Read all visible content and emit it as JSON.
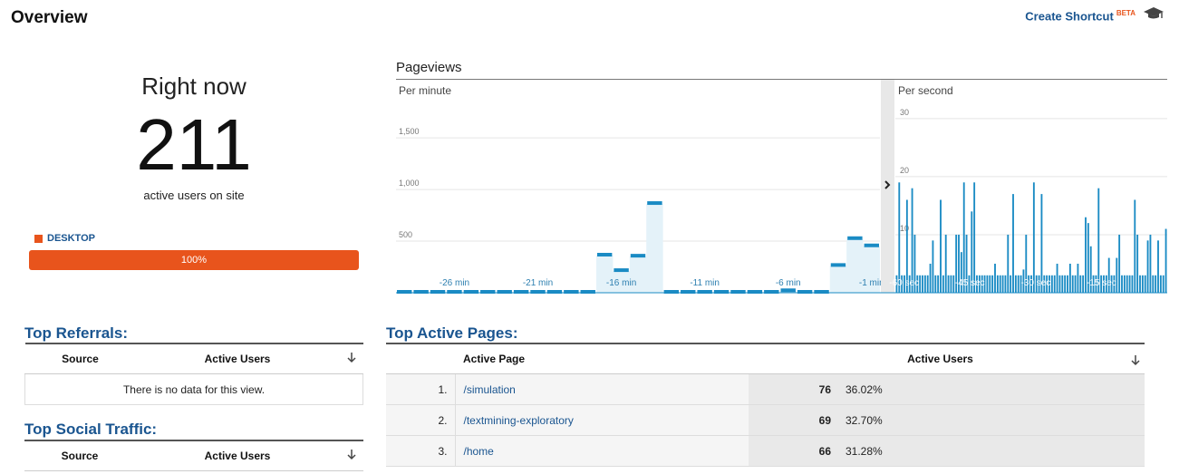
{
  "header": {
    "title": "Overview",
    "shortcut_label": "Create Shortcut",
    "shortcut_badge": "BETA",
    "cap_icon": "graduation-cap-icon"
  },
  "right_now": {
    "label": "Right now",
    "value": "211",
    "subtitle": "active users on site",
    "device_legend": "DESKTOP",
    "device_percent": "100%",
    "device_share": 1.0,
    "device_color": "#e8541c"
  },
  "pageviews": {
    "title": "Pageviews",
    "per_minute_label": "Per minute",
    "per_second_label": "Per second",
    "toggle_icon": "chevron-right-icon"
  },
  "chart_data": [
    {
      "type": "area",
      "title": "Per minute",
      "ylim": [
        0,
        1800
      ],
      "y_ticks": [
        "1,500",
        "1,000",
        "500"
      ],
      "y_tick_values": [
        1500,
        1000,
        500
      ],
      "x_tick_labels": [
        "-26 min",
        "-21 min",
        "-16 min",
        "-11 min",
        "-6 min",
        "-1 min"
      ],
      "x_tick_minutes": [
        -26,
        -21,
        -16,
        -11,
        -6,
        -1
      ],
      "x": [
        -29,
        -28,
        -27,
        -26,
        -25,
        -24,
        -23,
        -22,
        -21,
        -20,
        -19,
        -18,
        -17,
        -16,
        -15,
        -14,
        -13,
        -12,
        -11,
        -10,
        -9,
        -8,
        -7,
        -6,
        -5,
        -4,
        -3,
        -2,
        -1
      ],
      "values": [
        0,
        0,
        0,
        0,
        0,
        0,
        0,
        0,
        0,
        0,
        0,
        0,
        360,
        210,
        350,
        860,
        0,
        0,
        0,
        0,
        0,
        0,
        0,
        15,
        0,
        0,
        260,
        520,
        450
      ],
      "color": "#1a8bc4",
      "fill": "#e4f2f9"
    },
    {
      "type": "bar",
      "title": "Per second",
      "ylim": [
        0,
        32
      ],
      "y_ticks": [
        "30",
        "20",
        "10"
      ],
      "y_tick_values": [
        30,
        20,
        10
      ],
      "x_tick_labels": [
        "-60 sec",
        "-45 sec",
        "-30 sec",
        "-15 sec"
      ],
      "x_tick_seconds": [
        -60,
        -45,
        -30,
        -15
      ],
      "values": [
        3,
        19,
        3,
        3,
        16,
        3,
        18,
        10,
        3,
        3,
        3,
        3,
        3,
        5,
        9,
        3,
        3,
        16,
        3,
        10,
        3,
        3,
        3,
        10,
        10,
        7,
        19,
        10,
        3,
        14,
        19,
        3,
        3,
        3,
        3,
        3,
        3,
        3,
        5,
        3,
        3,
        3,
        3,
        10,
        3,
        17,
        3,
        3,
        3,
        4,
        10,
        3,
        3,
        19,
        3,
        3,
        17,
        3,
        3,
        3,
        3,
        3,
        5,
        3,
        3,
        3,
        3,
        5,
        3,
        3,
        5,
        3,
        3,
        13,
        12,
        8,
        3,
        3,
        18,
        3,
        3,
        3,
        6,
        3,
        3,
        6,
        10,
        3,
        3,
        3,
        3,
        3,
        16,
        10,
        3,
        3,
        3,
        9,
        10,
        3,
        3,
        9,
        3,
        3,
        11
      ],
      "color": "#1a8bc4"
    }
  ],
  "top_referrals": {
    "title": "Top Referrals:",
    "columns": [
      "Source",
      "Active Users"
    ],
    "sort_icon": "sort-down-arrow-icon",
    "empty_text": "There is no data for this view."
  },
  "top_social": {
    "title": "Top Social Traffic:",
    "columns": [
      "Source",
      "Active Users"
    ],
    "sort_icon": "sort-down-arrow-icon"
  },
  "top_pages": {
    "title": "Top Active Pages:",
    "columns": [
      "Active Page",
      "Active Users"
    ],
    "sort_icon": "sort-down-arrow-icon",
    "rows": [
      {
        "rank": "1.",
        "page": "/simulation",
        "users": "76",
        "percent": "36.02%"
      },
      {
        "rank": "2.",
        "page": "/textmining-exploratory",
        "users": "69",
        "percent": "32.70%"
      },
      {
        "rank": "3.",
        "page": "/home",
        "users": "66",
        "percent": "31.28%"
      }
    ]
  }
}
